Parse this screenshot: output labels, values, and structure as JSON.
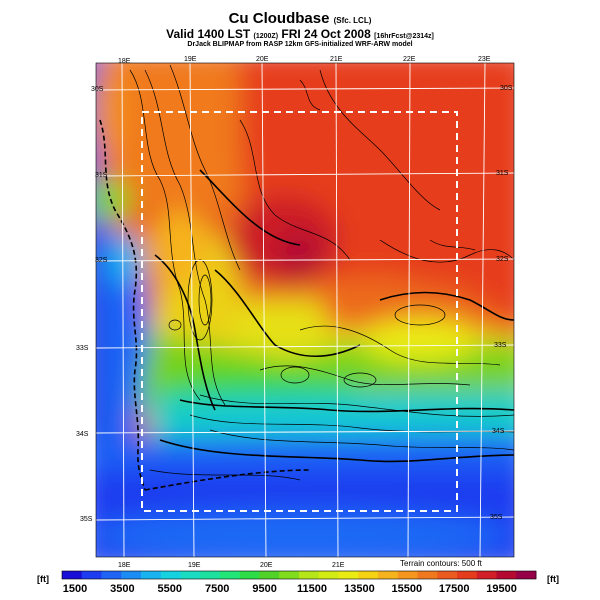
{
  "header": {
    "title": "Cu Cloudbase",
    "title_suffix": "(Sfc. LCL)",
    "valid_line": "Valid 1400 LST",
    "valid_code": "(1200Z)",
    "valid_date": "FRI 24 Oct 2008",
    "valid_tag": "[16hrFcst@2314z]",
    "model_line": "DrJack BLIPMAP from RASP 12km GFS-initialized WRF-ARW model"
  },
  "map": {
    "top_lon_labels": [
      "18E",
      "19E",
      "20E",
      "21E",
      "22E",
      "23E"
    ],
    "bottom_lon_labels": [
      "18E",
      "19E",
      "20E",
      "21E"
    ],
    "left_lat_labels": [
      "30S",
      "31S",
      "32S",
      "33S",
      "34S",
      "35S"
    ],
    "right_lat_labels": [
      "30S",
      "31S",
      "32S",
      "33S",
      "34S",
      "35S"
    ],
    "terrain_note": "Terrain contours: 500 ft",
    "subdomain_box": "dashed"
  },
  "colorbar": {
    "unit_left": "[ft]",
    "unit_right": "[ft]",
    "tick_labels": [
      "1500",
      "3500",
      "5500",
      "7500",
      "9500",
      "11500",
      "13500",
      "15500",
      "17500",
      "19500"
    ],
    "colors": [
      "#1a0fd6",
      "#1e3cf0",
      "#1f64f5",
      "#1c8cf5",
      "#19b4f0",
      "#16d2e1",
      "#19dcc3",
      "#1ee1a0",
      "#23e678",
      "#2ddc46",
      "#50d228",
      "#82dc1e",
      "#b4e619",
      "#d2eb14",
      "#ebeb14",
      "#f5d214",
      "#f5b41e",
      "#f5961e",
      "#f0781e",
      "#eb5a1e",
      "#e63c1e",
      "#d21e28",
      "#b40a32",
      "#960046"
    ]
  }
}
